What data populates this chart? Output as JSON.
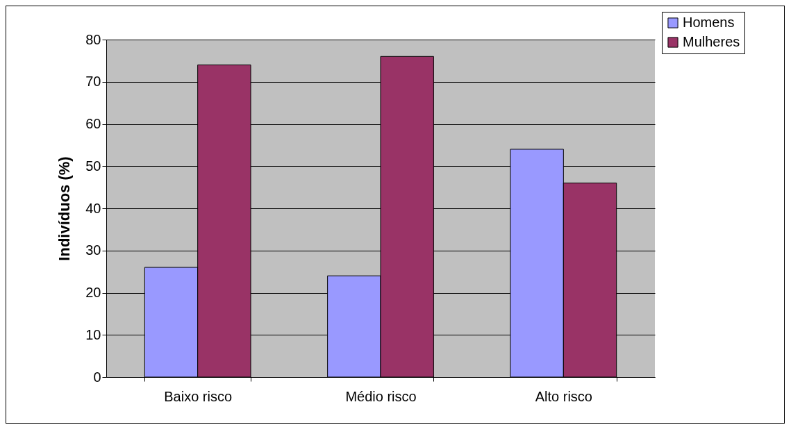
{
  "chart_data": {
    "type": "bar",
    "ylabel": "Indivíduos (%)",
    "categories": [
      "Baixo risco",
      "Médio risco",
      "Alto risco"
    ],
    "series": [
      {
        "name": "Homens",
        "color": "#9999ff",
        "values": [
          26,
          24,
          54
        ]
      },
      {
        "name": "Mulheres",
        "color": "#993366",
        "values": [
          74,
          76,
          46
        ]
      }
    ],
    "ylim": [
      0,
      80
    ],
    "yticks": [
      0,
      10,
      20,
      30,
      40,
      50,
      60,
      70,
      80
    ],
    "grid": "y",
    "legend": "top right"
  }
}
